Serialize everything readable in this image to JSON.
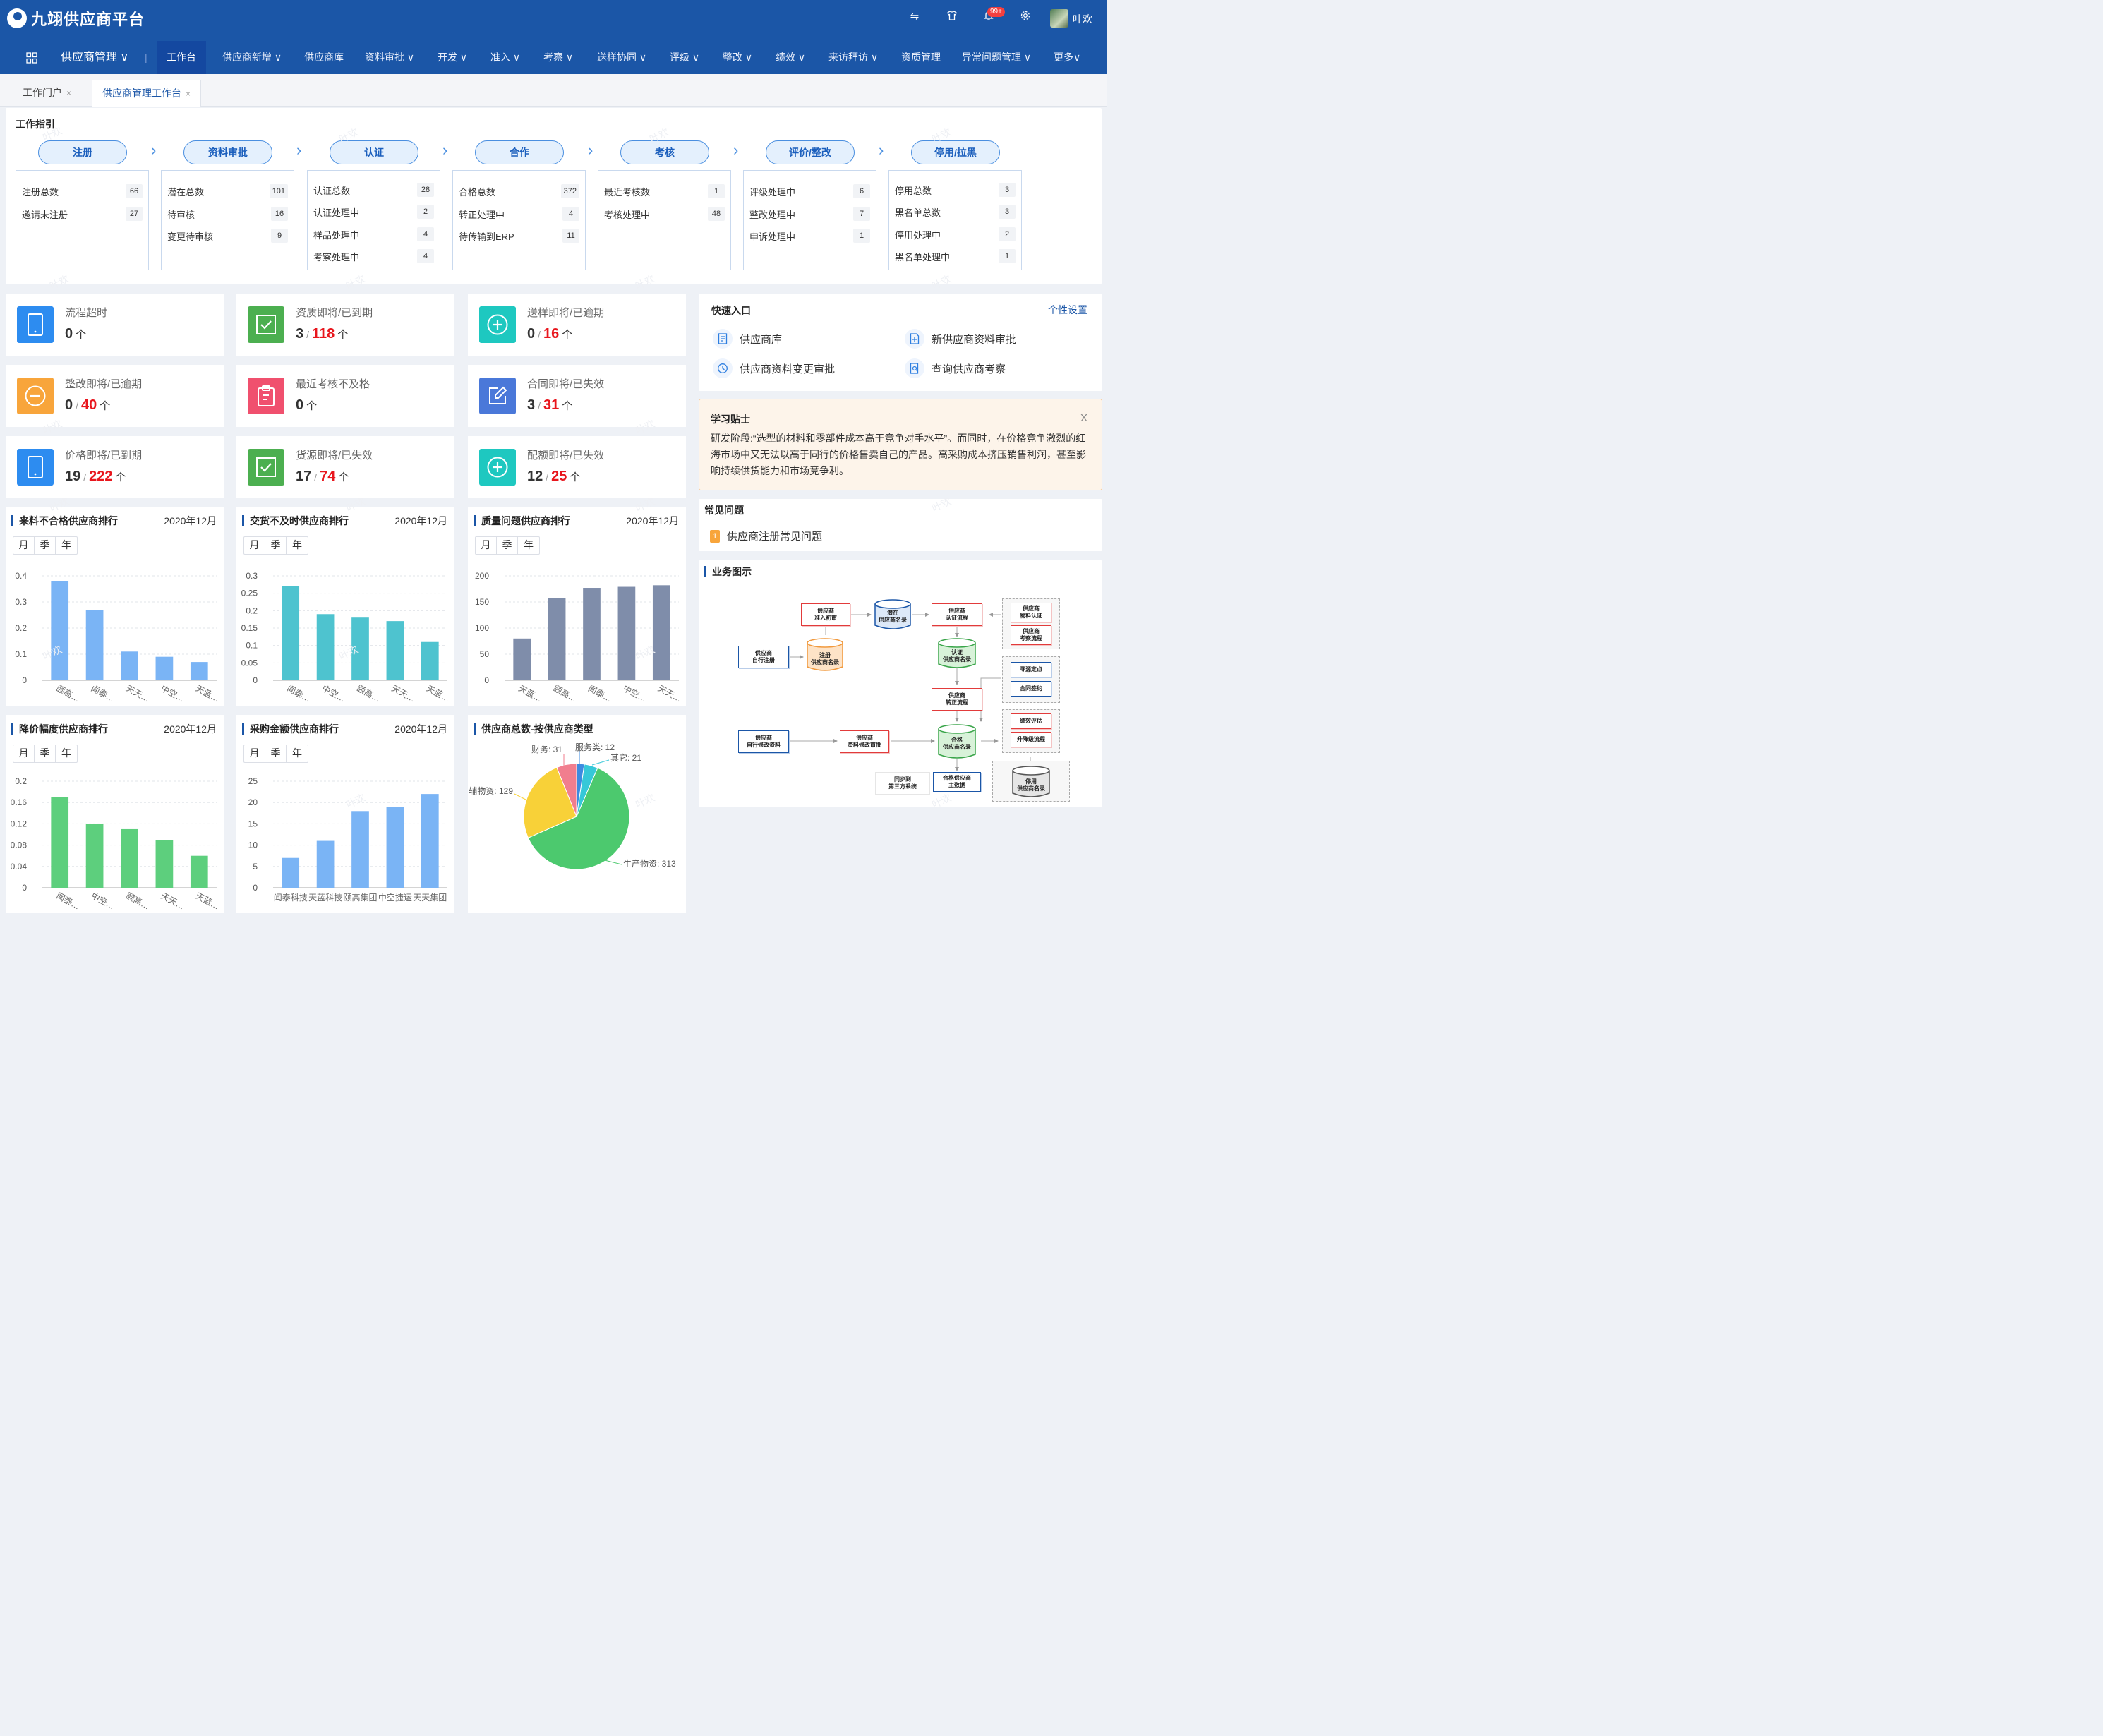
{
  "header": {
    "logo_text": "九翊供应商平台",
    "notification_badge": "99+",
    "user_name": "叶欢",
    "icons": [
      "swap-icon",
      "shirt-icon",
      "bell-icon",
      "gear-icon"
    ]
  },
  "nav": {
    "module": "供应商管理 ∨",
    "items": [
      "工作台",
      "供应商新增 ∨",
      "供应商库",
      "资料审批 ∨",
      "开发 ∨",
      "准入 ∨",
      "考察 ∨",
      "送样协同 ∨",
      "评级 ∨",
      "整改 ∨",
      "绩效 ∨",
      "来访拜访 ∨",
      "资质管理",
      "异常问题管理 ∨",
      "更多∨"
    ]
  },
  "tabs": [
    {
      "label": "工作门户",
      "close": "×"
    },
    {
      "label": "供应商管理工作台",
      "close": "×"
    }
  ],
  "watermark": "叶欢",
  "guide": {
    "title": "工作指引",
    "steps": [
      {
        "name": "注册",
        "rows": [
          [
            "注册总数",
            "66"
          ],
          [
            "邀请未注册",
            "27"
          ]
        ]
      },
      {
        "name": "资料审批",
        "rows": [
          [
            "潜在总数",
            "101"
          ],
          [
            "待审核",
            "16"
          ],
          [
            "变更待审核",
            "9"
          ]
        ]
      },
      {
        "name": "认证",
        "rows": [
          [
            "认证总数",
            "28"
          ],
          [
            "认证处理中",
            "2"
          ],
          [
            "样品处理中",
            "4"
          ],
          [
            "考察处理中",
            "4"
          ]
        ]
      },
      {
        "name": "合作",
        "rows": [
          [
            "合格总数",
            "372"
          ],
          [
            "转正处理中",
            "4"
          ],
          [
            "待传输到ERP",
            "11"
          ]
        ]
      },
      {
        "name": "考核",
        "rows": [
          [
            "最近考核数",
            "1"
          ],
          [
            "考核处理中",
            "48"
          ]
        ]
      },
      {
        "name": "评价/整改",
        "rows": [
          [
            "评级处理中",
            "6"
          ],
          [
            "整改处理中",
            "7"
          ],
          [
            "申诉处理中",
            "1"
          ]
        ]
      },
      {
        "name": "停用/拉黑",
        "rows": [
          [
            "停用总数",
            "3"
          ],
          [
            "黑名单总数",
            "3"
          ],
          [
            "停用处理中",
            "2"
          ],
          [
            "黑名单处理中",
            "1"
          ]
        ]
      }
    ]
  },
  "stats": [
    {
      "label": "流程超时",
      "a": "0",
      "b": "",
      "unit": "个",
      "icon": "tablet-icon",
      "color": "#2d8cf0"
    },
    {
      "label": "资质即将/已到期",
      "a": "3",
      "b": "118",
      "unit": "个",
      "icon": "checkbox-icon",
      "color": "#4caf50"
    },
    {
      "label": "送样即将/已逾期",
      "a": "0",
      "b": "16",
      "unit": "个",
      "icon": "plus-circle-icon",
      "color": "#1ec8c0"
    },
    {
      "label": "整改即将/已逾期",
      "a": "0",
      "b": "40",
      "unit": "个",
      "icon": "minus-circle-icon",
      "color": "#f8a53b"
    },
    {
      "label": "最近考核不及格",
      "a": "0",
      "b": "",
      "unit": "个",
      "icon": "clipboard-icon",
      "color": "#f0506e"
    },
    {
      "label": "合同即将/已失效",
      "a": "3",
      "b": "31",
      "unit": "个",
      "icon": "edit-icon",
      "color": "#4a78d9"
    },
    {
      "label": "价格即将/已到期",
      "a": "19",
      "b": "222",
      "unit": "个",
      "icon": "tablet-icon",
      "color": "#2d8cf0"
    },
    {
      "label": "货源即将/已失效",
      "a": "17",
      "b": "74",
      "unit": "个",
      "icon": "checkbox-icon",
      "color": "#4caf50"
    },
    {
      "label": "配额即将/已失效",
      "a": "12",
      "b": "25",
      "unit": "个",
      "icon": "plus-circle-icon",
      "color": "#1ec8c0"
    }
  ],
  "quick": {
    "title": "快速入口",
    "settings": "个性设置",
    "items": [
      "供应商库",
      "新供应商资料审批",
      "供应商资料变更审批",
      "查询供应商考察"
    ]
  },
  "tips": {
    "title": "学习贴士",
    "close": "X",
    "text": "研发阶段:“选型的材料和零部件成本高于竞争对手水平”。而同时，在价格竞争激烈的红海市场中又无法以高于同行的价格售卖自己的产品。高采购成本挤压销售利润，甚至影响持续供货能力和市场竞争利。"
  },
  "faq": {
    "title": "常见问题",
    "items": [
      {
        "num": "1",
        "text": "供应商注册常见问题"
      }
    ]
  },
  "biz": {
    "title": "业务图示",
    "nodes": {
      "n1": "供应商\n准入初审",
      "n2": "潜在\n供应商名录",
      "n3": "供应商\n认证流程",
      "n4": "供应商\n物料认证",
      "n5": "供应商\n考察流程",
      "n6": "供应商\n自行注册",
      "n7": "注册\n供应商名录",
      "n8": "认证\n供应商名录",
      "n9": "寻源定点",
      "n10": "合同签约",
      "n11": "供应商\n转正流程",
      "n12": "绩效评估",
      "n13": "升降级流程",
      "n14": "供应商\n自行修改资料",
      "n15": "供应商\n资料修改审批",
      "n16": "合格\n供应商名录",
      "n17": "同步到\n第三方系统",
      "n18": "合格供应商\n主数据",
      "n19": "停用\n供应商名录"
    }
  },
  "periods": [
    "月",
    "季",
    "年"
  ],
  "chart_data": [
    {
      "type": "bar",
      "title": "来料不合格供应商排行",
      "date": "2020年12月",
      "categories": [
        "颐高…",
        "闻泰…",
        "天天…",
        "中空…",
        "天蓝…"
      ],
      "values": [
        0.38,
        0.27,
        0.11,
        0.09,
        0.07
      ],
      "yticks": [
        "0",
        "0.1",
        "0.2",
        "0.3",
        "0.4"
      ],
      "ylim": [
        0,
        0.4
      ],
      "color": "#7ab4f5"
    },
    {
      "type": "bar",
      "title": "交货不及时供应商排行",
      "date": "2020年12月",
      "categories": [
        "闻泰…",
        "中空…",
        "颐高…",
        "天天…",
        "天蓝…"
      ],
      "values": [
        0.27,
        0.19,
        0.18,
        0.17,
        0.11
      ],
      "yticks": [
        "0",
        "0.05",
        "0.1",
        "0.15",
        "0.2",
        "0.25",
        "0.3"
      ],
      "ylim": [
        0,
        0.3
      ],
      "color": "#4ec3cf"
    },
    {
      "type": "bar",
      "title": "质量问题供应商排行",
      "date": "2020年12月",
      "categories": [
        "天蓝…",
        "颐高…",
        "闻泰…",
        "中空…",
        "天天…"
      ],
      "values": [
        80,
        157,
        177,
        179,
        182
      ],
      "yticks": [
        "0",
        "50",
        "100",
        "150",
        "200"
      ],
      "ylim": [
        0,
        200
      ],
      "color": "#7f8daa"
    },
    {
      "type": "bar",
      "title": "降价幅度供应商排行",
      "date": "2020年12月",
      "categories": [
        "闻泰…",
        "中空…",
        "颐高…",
        "天天…",
        "天蓝…"
      ],
      "values": [
        0.17,
        0.12,
        0.11,
        0.09,
        0.06
      ],
      "yticks": [
        "0",
        "0.04",
        "0.08",
        "0.12",
        "0.16",
        "0.2"
      ],
      "ylim": [
        0,
        0.2
      ],
      "color": "#5dcf7d"
    },
    {
      "type": "bar",
      "title": "采购金额供应商排行",
      "date": "2020年12月",
      "categories": [
        "闻泰科技",
        "天蓝科技",
        "颐高集团",
        "中空捷运",
        "天天集团"
      ],
      "values": [
        7,
        11,
        18,
        19,
        22
      ],
      "yticks": [
        "0",
        "5",
        "10",
        "15",
        "20",
        "25"
      ],
      "ylim": [
        0,
        25
      ],
      "color": "#7ab4f5"
    },
    {
      "type": "pie",
      "title": "供应商总数-按供应商类型",
      "slices": [
        {
          "name": "生产物资",
          "value": 313,
          "label": "生产物资: 313",
          "color": "#4cc96e"
        },
        {
          "name": "辅物资",
          "value": 129,
          "label": "辅物资: 129",
          "color": "#f8d138"
        },
        {
          "name": "财务",
          "value": 31,
          "label": "财务: 31",
          "color": "#f17e8e"
        },
        {
          "name": "服务类",
          "value": 12,
          "label": "服务类: 12",
          "color": "#3d8be0"
        },
        {
          "name": "其它",
          "value": 21,
          "label": "其它: 21",
          "color": "#36c8d8"
        }
      ]
    }
  ]
}
